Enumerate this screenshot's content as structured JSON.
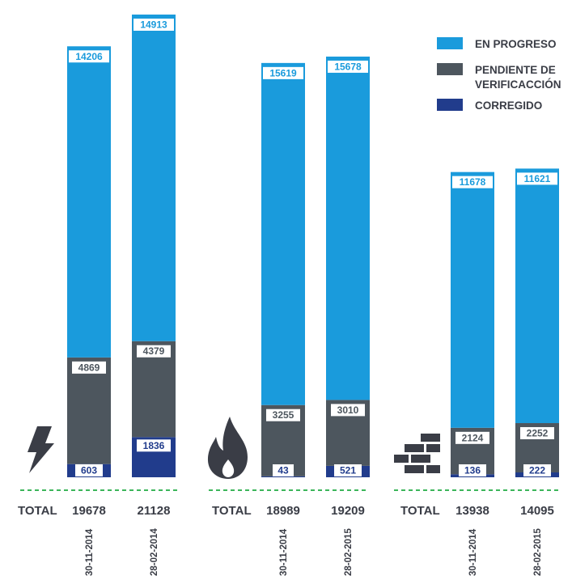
{
  "colors": {
    "en_progreso": "#1a9bdc",
    "pendiente": "#4d565e",
    "corregido": "#213c8c",
    "text": "#3a3d46",
    "baseline": "#3cb55a"
  },
  "legend": {
    "items": [
      {
        "label": "EN PROGRESO",
        "color_key": "en_progreso"
      },
      {
        "label": "PENDIENTE DE",
        "label2": "VERIFICACCIÓN",
        "color_key": "pendiente"
      },
      {
        "label": "CORREGIDO",
        "color_key": "corregido"
      }
    ]
  },
  "groups": [
    {
      "icon": "lightning-icon",
      "total_label": "TOTAL"
    },
    {
      "icon": "fire-icon",
      "total_label": "TOTAL"
    },
    {
      "icon": "bricks-icon",
      "total_label": "TOTAL"
    }
  ],
  "chart_data": {
    "type": "bar",
    "stacked": true,
    "groups": [
      "lightning",
      "fire",
      "bricks"
    ],
    "categories": [
      "30-11-2014",
      "28-02-2014",
      "30-11-2014",
      "28-02-2015",
      "30-11-2014",
      "28-02-2015"
    ],
    "category_group": [
      0,
      0,
      1,
      1,
      2,
      2
    ],
    "series": [
      {
        "name": "CORREGIDO",
        "color_key": "corregido",
        "values": [
          603,
          1836,
          43,
          521,
          136,
          222
        ]
      },
      {
        "name": "PENDIENTE DE VERIFICACCIÓN",
        "color_key": "pendiente",
        "values": [
          4869,
          4379,
          3255,
          3010,
          2124,
          2252
        ]
      },
      {
        "name": "EN PROGRESO",
        "color_key": "en_progreso",
        "values": [
          14206,
          14913,
          15619,
          15678,
          11678,
          11621
        ]
      }
    ],
    "totals": [
      19678,
      21128,
      18989,
      19209,
      13938,
      14095
    ],
    "ylim": [
      0,
      21128
    ],
    "legend_position": "top-right"
  }
}
